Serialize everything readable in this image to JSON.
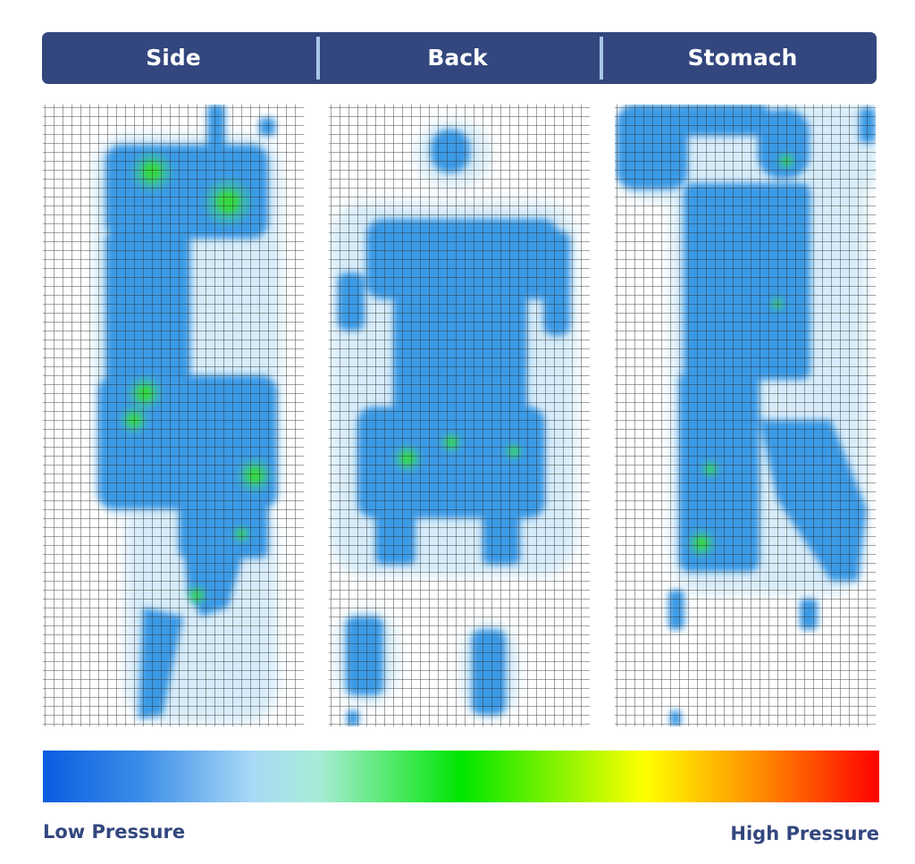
{
  "header": {
    "tabs": [
      "Side",
      "Back",
      "Stomach"
    ]
  },
  "legend": {
    "low": "Low Pressure",
    "high": "High Pressure"
  }
}
